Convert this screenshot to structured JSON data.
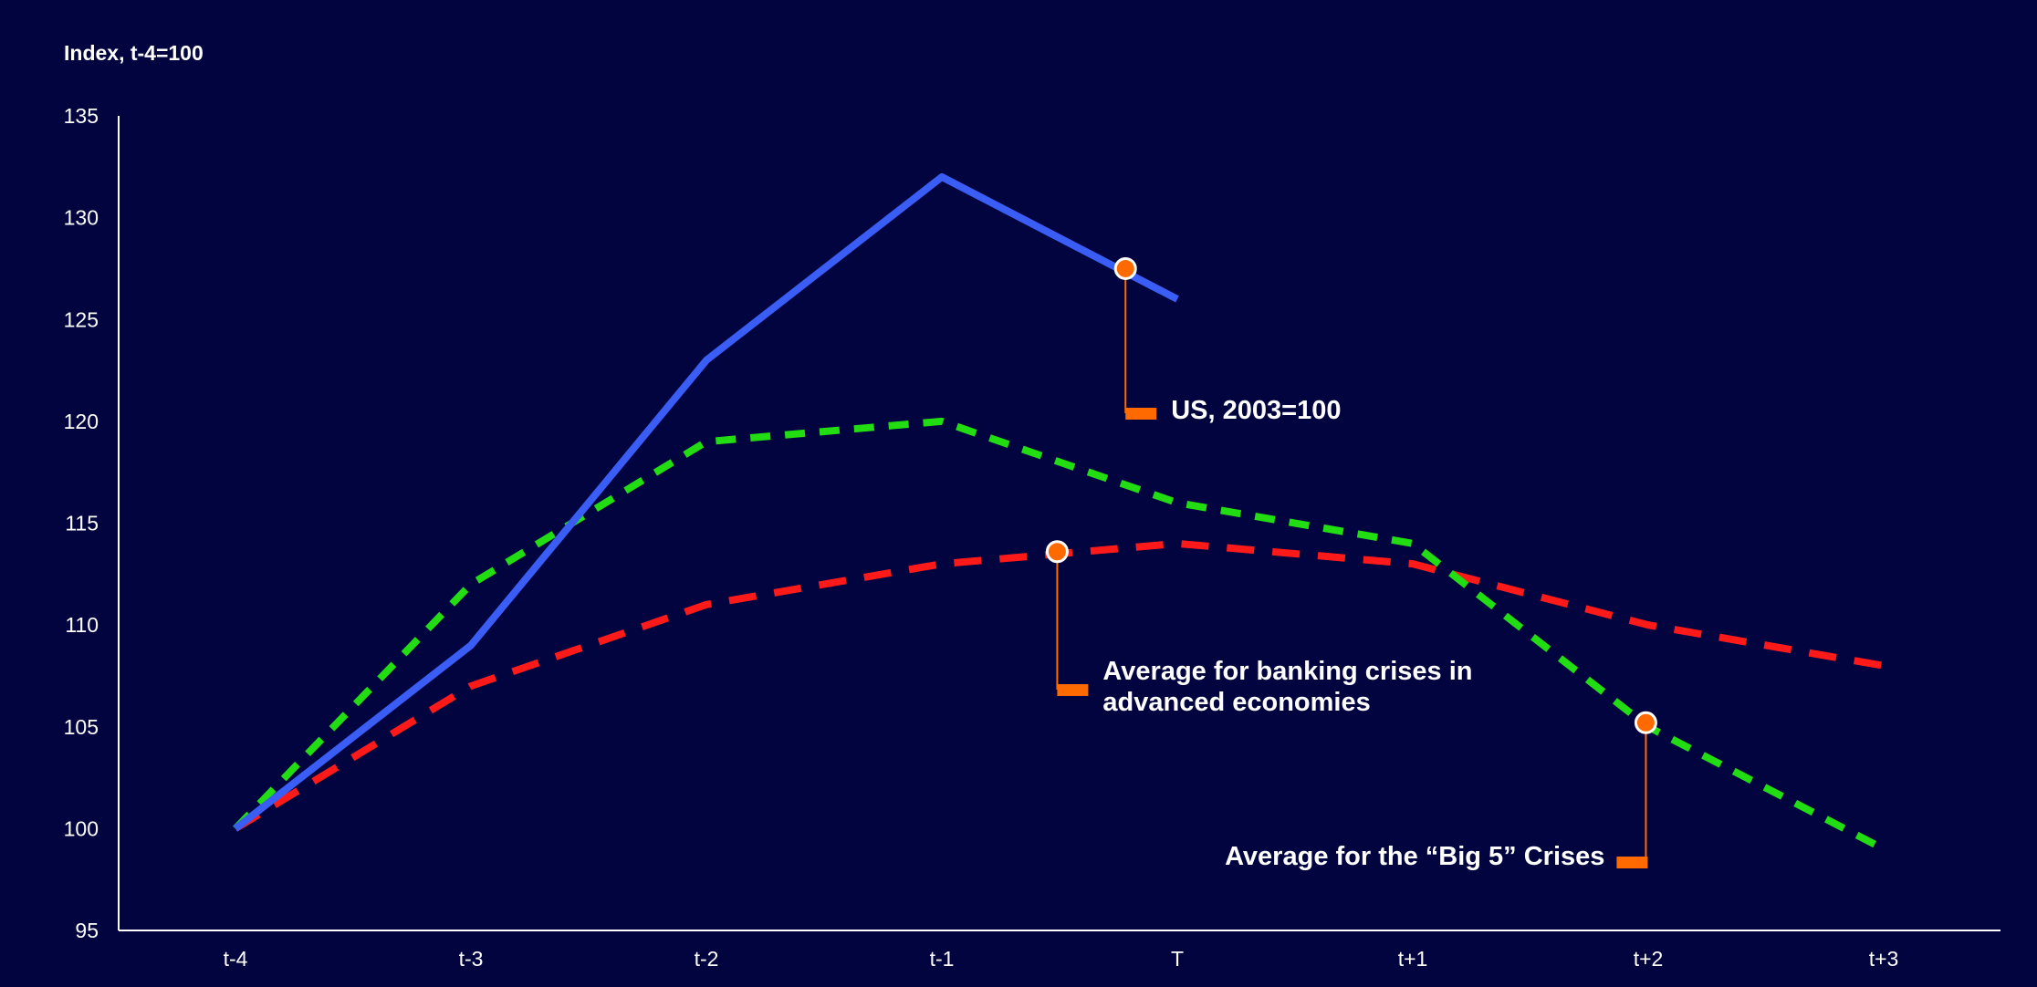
{
  "chart_data": {
    "type": "line",
    "ylabel": "Index, t-4=100",
    "xlabel": "",
    "ylim": [
      95,
      135
    ],
    "yticks": [
      95,
      100,
      105,
      110,
      115,
      120,
      125,
      130,
      135
    ],
    "categories": [
      "t-4",
      "t-3",
      "t-2",
      "t-1",
      "T",
      "t+1",
      "t+2",
      "t+3"
    ],
    "grid": false,
    "legend": "none (inline callout labels)",
    "series": [
      {
        "name": "US, 2003=100",
        "color": "#3a5ef5",
        "style": "solid",
        "values": [
          100,
          109,
          123,
          132,
          126,
          null,
          null,
          null
        ]
      },
      {
        "name": "Average for banking crises in advanced economies",
        "color": "#ff1a1a",
        "style": "dashed",
        "values": [
          100,
          107,
          111,
          113,
          114,
          113,
          110,
          108
        ]
      },
      {
        "name": "Average for the “Big 5” Crises",
        "color": "#22dd11",
        "style": "dashed",
        "values": [
          100,
          112,
          119,
          120,
          116,
          114,
          105,
          99
        ]
      }
    ],
    "annotations": [
      {
        "series": 0,
        "x": 3.78,
        "y": 127.5,
        "lines": [
          "US, 2003=100"
        ],
        "side": "right"
      },
      {
        "series": 1,
        "x": 3.49,
        "y": 113.6,
        "lines": [
          "Average for banking crises in",
          "advanced economies"
        ],
        "side": "right"
      },
      {
        "series": 2,
        "x": 5.99,
        "y": 105.2,
        "lines": [
          "Average for the “Big 5” Crises"
        ],
        "side": "left"
      }
    ],
    "colors": {
      "background": "#020440",
      "axis": "#ffffff",
      "callout": "#ff6a00"
    }
  }
}
